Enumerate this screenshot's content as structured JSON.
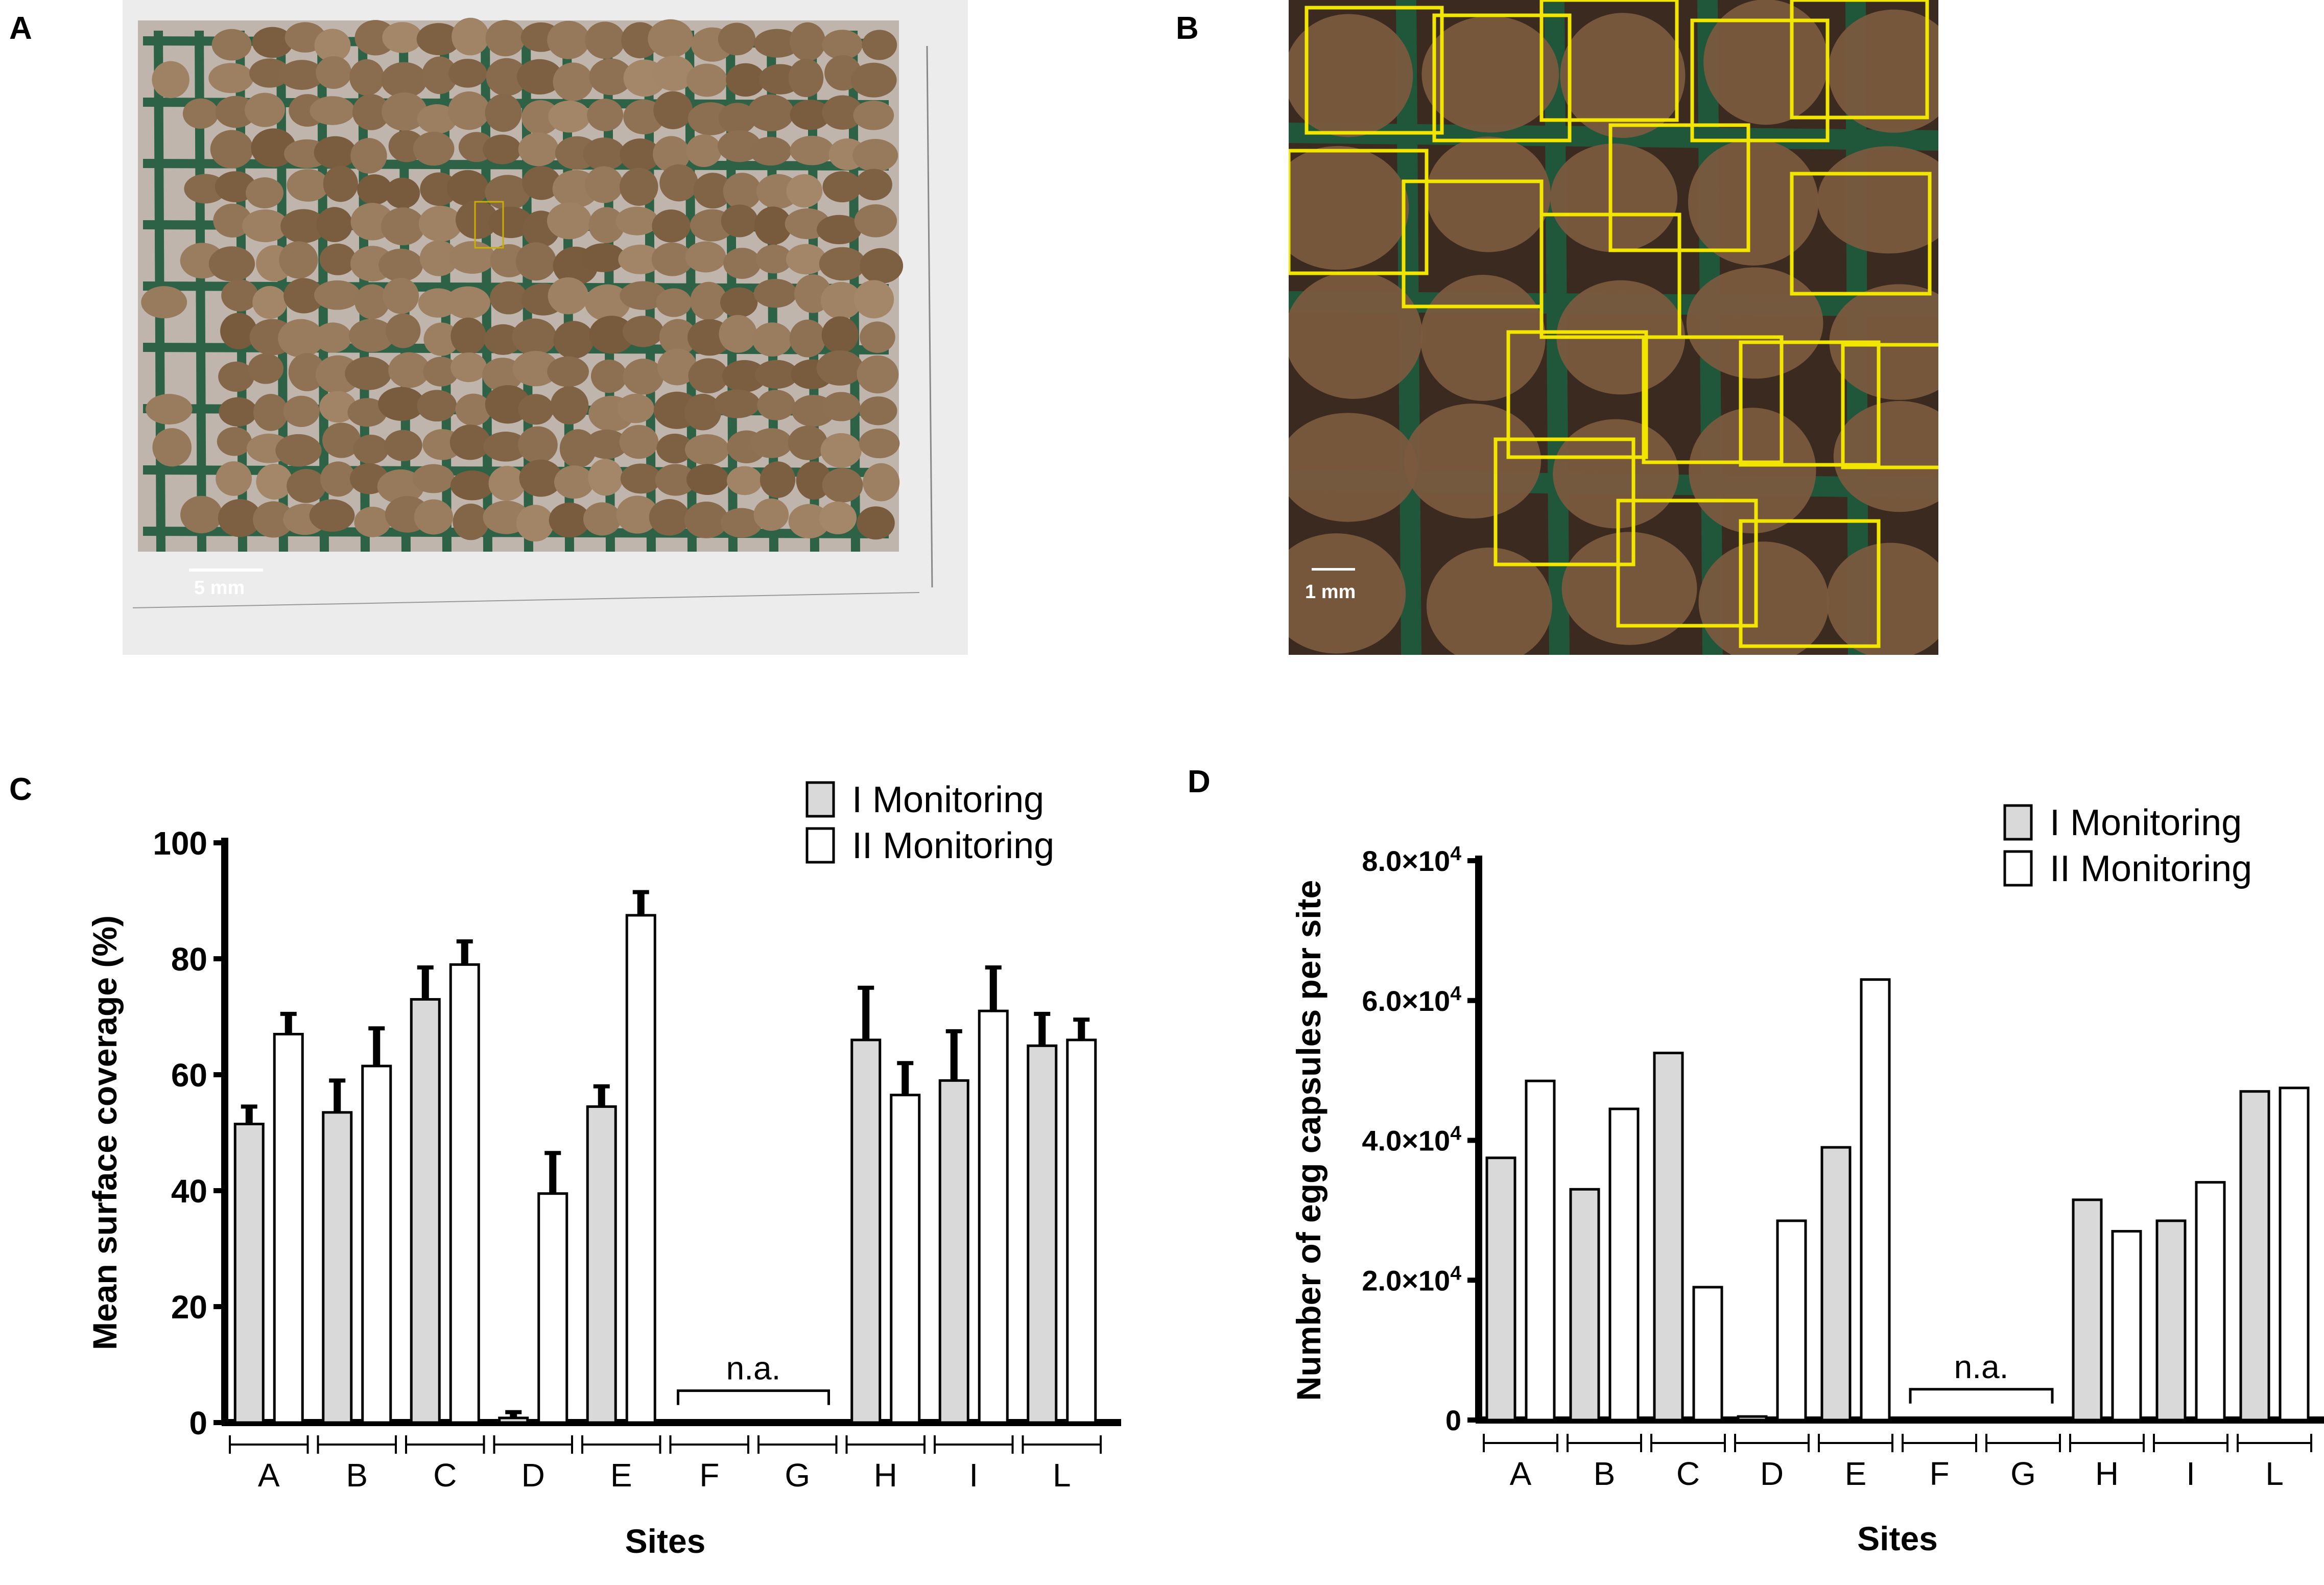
{
  "panels": {
    "a": "A",
    "b": "B",
    "c": "C",
    "d": "D"
  },
  "photo_a": {
    "scale_label": "5 mm"
  },
  "photo_b": {
    "scale_label": "1 mm"
  },
  "chart_data": [
    {
      "type": "bar",
      "categories": [
        "A",
        "B",
        "C",
        "D",
        "E",
        "F",
        "G",
        "H",
        "I",
        "L"
      ],
      "series": [
        {
          "name": "I Monitoring",
          "values": [
            51.5,
            53.5,
            73,
            0.8,
            54.5,
            0,
            0,
            66,
            59,
            65
          ],
          "errors": [
            3,
            5.5,
            5.5,
            1,
            3.5,
            0,
            0,
            9,
            8.5,
            5.5
          ],
          "color": "#d9d9d9"
        },
        {
          "name": "II Monitoring",
          "values": [
            67,
            61.5,
            79,
            39.5,
            87.5,
            0,
            0,
            56.5,
            71,
            66
          ],
          "errors": [
            3.5,
            6.5,
            4,
            7,
            4,
            0,
            0,
            5.5,
            7.5,
            3.5
          ],
          "color": "#ffffff"
        }
      ],
      "xlabel": "Sites",
      "ylabel": "Mean surface coverage (%)",
      "ylim": [
        0,
        100
      ],
      "yticks": [
        "0",
        "20",
        "40",
        "60",
        "80",
        "100"
      ],
      "annotation": "n.a.",
      "legend": "top-right"
    },
    {
      "type": "bar",
      "categories": [
        "A",
        "B",
        "C",
        "D",
        "E",
        "F",
        "G",
        "H",
        "I",
        "L"
      ],
      "series": [
        {
          "name": "I Monitoring",
          "values": [
            37500,
            33000,
            52500,
            500,
            39000,
            0,
            0,
            31500,
            28500,
            47000
          ],
          "color": "#d9d9d9"
        },
        {
          "name": "II Monitoring",
          "values": [
            48500,
            44500,
            19000,
            28500,
            63000,
            0,
            0,
            27000,
            34000,
            47500
          ],
          "color": "#ffffff"
        }
      ],
      "xlabel": "Sites",
      "ylabel": "Number of egg capsules per site",
      "ylim": [
        0,
        80000
      ],
      "yticks": [
        {
          "mantissa": "",
          "sup": "",
          "plain": "0"
        },
        {
          "mantissa": "2.0×10",
          "sup": "4",
          "plain": ""
        },
        {
          "mantissa": "4.0×10",
          "sup": "4",
          "plain": ""
        },
        {
          "mantissa": "6.0×10",
          "sup": "4",
          "plain": ""
        },
        {
          "mantissa": "8.0×10",
          "sup": "4",
          "plain": ""
        }
      ],
      "annotation": "n.a.",
      "legend": "top-right"
    }
  ],
  "colors": {
    "mesh_green": "#1f5a3c",
    "egg_brown": "#7a5a3e",
    "box_yellow": "#f2e600"
  }
}
